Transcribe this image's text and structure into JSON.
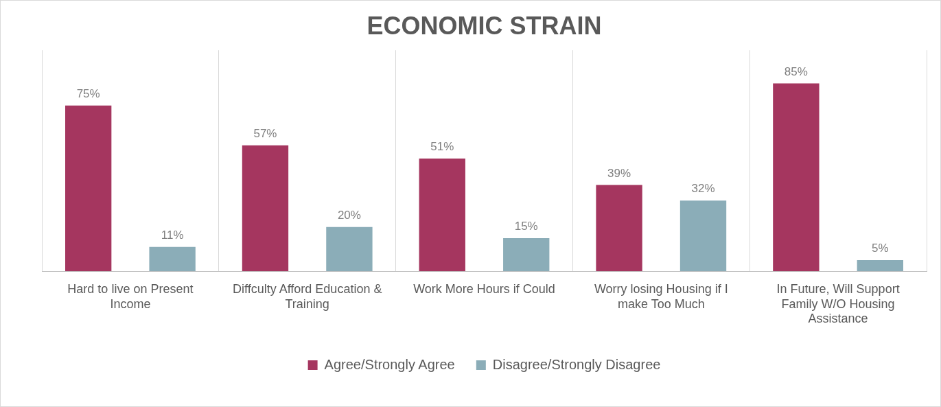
{
  "chart_data": {
    "type": "bar",
    "title": "ECONOMIC STRAIN",
    "categories": [
      "Hard to live on Present Income",
      "Diffculty Afford Education & Training",
      "Work More Hours if Could",
      "Worry losing Housing if I make Too Much",
      "In Future, Will Support Family W/O Housing Assistance"
    ],
    "series": [
      {
        "name": "Agree/Strongly Agree",
        "color": "#a5365f",
        "values": [
          75,
          57,
          51,
          39,
          85
        ],
        "value_labels": [
          "75%",
          "57%",
          "51%",
          "39%",
          "85%"
        ]
      },
      {
        "name": "Disagree/Strongly Disagree",
        "color": "#8badb8",
        "values": [
          11,
          20,
          15,
          32,
          5
        ],
        "value_labels": [
          "11%",
          "20%",
          "15%",
          "32%",
          "5%"
        ]
      }
    ],
    "grid": "x",
    "legend": "bottom",
    "tick_labels": "x"
  }
}
